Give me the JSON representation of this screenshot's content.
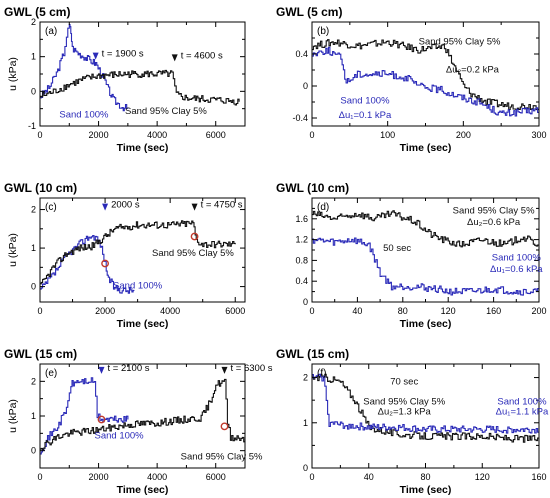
{
  "figure": {
    "colors": {
      "blue": "#2a2ab8",
      "black": "#111111",
      "marker": "#c0392b"
    }
  },
  "chart_data": [
    {
      "id": "a",
      "type": "line",
      "title": "GWL (5 cm)",
      "panel_label": "(a)",
      "xlabel": "Time (sec)",
      "ylabel": "u (kPa)",
      "xlim": [
        0,
        7000
      ],
      "ylim": [
        -1,
        2
      ],
      "xticks": [
        0,
        2000,
        4000,
        6000
      ],
      "yticks": [
        -1,
        0,
        1,
        2
      ],
      "xticks_unlabeled": [
        1000,
        3000,
        5000
      ],
      "yticks_unlabeled": [
        -0.5,
        0.5,
        1.5
      ],
      "series": [
        {
          "name": "Sand 100%",
          "color": "blue",
          "points": [
            [
              0,
              -0.15
            ],
            [
              300,
              0.1
            ],
            [
              600,
              0.6
            ],
            [
              800,
              1.1
            ],
            [
              900,
              1.6
            ],
            [
              1000,
              1.9
            ],
            [
              1050,
              1.7
            ],
            [
              1100,
              1.25
            ],
            [
              1300,
              1.1
            ],
            [
              1500,
              1.0
            ],
            [
              1700,
              0.9
            ],
            [
              1900,
              0.8
            ],
            [
              2100,
              0.5
            ],
            [
              2300,
              0.1
            ],
            [
              2500,
              -0.25
            ],
            [
              2800,
              -0.45
            ],
            [
              3000,
              -0.5
            ]
          ]
        },
        {
          "name": "Sand 95% Clay 5%",
          "color": "black",
          "points": [
            [
              0,
              -0.15
            ],
            [
              500,
              0.0
            ],
            [
              1000,
              0.2
            ],
            [
              1500,
              0.35
            ],
            [
              2000,
              0.45
            ],
            [
              3000,
              0.5
            ],
            [
              4000,
              0.5
            ],
            [
              4500,
              0.5
            ],
            [
              4650,
              -0.1
            ],
            [
              5000,
              -0.2
            ],
            [
              6000,
              -0.25
            ],
            [
              6800,
              -0.3
            ]
          ]
        }
      ],
      "annotations": [
        {
          "text": "t = 1900 s",
          "x": 1900,
          "y": 1.0,
          "arrow": true,
          "color": "blue"
        },
        {
          "text": "t = 4600 s",
          "x": 4600,
          "y": 0.95,
          "arrow": true,
          "color": "black"
        },
        {
          "text": "Sand 100%",
          "x": 1500,
          "y": -0.75,
          "color": "blue"
        },
        {
          "text": "Sand 95% Clay 5%",
          "x": 4300,
          "y": -0.65,
          "color": "black"
        }
      ]
    },
    {
      "id": "b",
      "type": "line",
      "title": "GWL (5 cm)",
      "panel_label": "(b)",
      "xlabel": "Time (sec)",
      "ylabel": "",
      "xlim": [
        0,
        300
      ],
      "ylim": [
        -0.5,
        0.8
      ],
      "xticks": [
        0,
        100,
        200,
        300
      ],
      "yticks": [
        -0.4,
        0,
        0.4
      ],
      "xticks_unlabeled": [
        50,
        150,
        250
      ],
      "yticks_unlabeled": [
        -0.2,
        0.2,
        0.6
      ],
      "series": [
        {
          "name": "Sand 95% Clay 5%",
          "color": "black",
          "points": [
            [
              0,
              0.5
            ],
            [
              30,
              0.55
            ],
            [
              60,
              0.5
            ],
            [
              100,
              0.55
            ],
            [
              140,
              0.45
            ],
            [
              175,
              0.5
            ],
            [
              190,
              0.2
            ],
            [
              200,
              0.0
            ],
            [
              210,
              -0.1
            ],
            [
              230,
              -0.2
            ],
            [
              260,
              -0.25
            ],
            [
              300,
              -0.25
            ]
          ]
        },
        {
          "name": "Sand 100%",
          "color": "blue",
          "points": [
            [
              0,
              0.4
            ],
            [
              20,
              0.45
            ],
            [
              38,
              0.35
            ],
            [
              45,
              0.05
            ],
            [
              60,
              0.15
            ],
            [
              80,
              0.15
            ],
            [
              100,
              0.15
            ],
            [
              125,
              0.1
            ],
            [
              140,
              0.0
            ],
            [
              170,
              -0.05
            ],
            [
              200,
              -0.15
            ],
            [
              220,
              -0.2
            ],
            [
              250,
              -0.35
            ],
            [
              300,
              -0.3
            ]
          ]
        }
      ],
      "annotations": [
        {
          "text": "Sand 95% Clay 5%",
          "x": 195,
          "y": 0.52,
          "color": "black"
        },
        {
          "text": "Δu₂=0.2 kPa",
          "x": 212,
          "y": 0.17,
          "color": "black"
        },
        {
          "text": "Sand 100%",
          "x": 70,
          "y": -0.22,
          "color": "blue"
        },
        {
          "text": "Δu₁=0.1 kPa",
          "x": 70,
          "y": -0.4,
          "color": "blue"
        }
      ]
    },
    {
      "id": "c",
      "type": "line",
      "title": "GWL (10 cm)",
      "panel_label": "(c)",
      "xlabel": "Time (sec)",
      "ylabel": "u (kPa)",
      "xlim": [
        0,
        6300
      ],
      "ylim": [
        -0.4,
        2.3
      ],
      "xticks": [
        0,
        2000,
        4000,
        6000
      ],
      "yticks": [
        0,
        1,
        2
      ],
      "xticks_unlabeled": [
        1000,
        3000,
        5000
      ],
      "yticks_unlabeled": [
        0.5,
        1.5
      ],
      "series": [
        {
          "name": "Sand 100%",
          "color": "blue",
          "points": [
            [
              0,
              -0.1
            ],
            [
              400,
              0.3
            ],
            [
              800,
              0.8
            ],
            [
              1200,
              1.1
            ],
            [
              1500,
              1.3
            ],
            [
              1700,
              1.3
            ],
            [
              1850,
              1.1
            ],
            [
              2000,
              0.6
            ],
            [
              2100,
              0.2
            ],
            [
              2300,
              -0.05
            ],
            [
              2600,
              -0.1
            ],
            [
              2900,
              -0.1
            ]
          ]
        },
        {
          "name": "Sand 95% Clay 5%",
          "color": "black",
          "points": [
            [
              0,
              0.0
            ],
            [
              400,
              0.5
            ],
            [
              800,
              0.85
            ],
            [
              1200,
              1.0
            ],
            [
              1600,
              1.05
            ],
            [
              2000,
              1.3
            ],
            [
              2300,
              1.5
            ],
            [
              3000,
              1.6
            ],
            [
              4000,
              1.6
            ],
            [
              4700,
              1.65
            ],
            [
              4800,
              1.2
            ],
            [
              5000,
              1.1
            ],
            [
              6000,
              1.1
            ]
          ]
        }
      ],
      "markers": [
        {
          "x": 2000,
          "y": 0.6
        },
        {
          "x": 4750,
          "y": 1.3
        }
      ],
      "annotations": [
        {
          "text": "2000 s",
          "x": 2000,
          "y": 2.05,
          "arrow": true,
          "color": "blue"
        },
        {
          "text": "t = 4750 s",
          "x": 4750,
          "y": 2.05,
          "arrow": true,
          "color": "black"
        },
        {
          "text": "Sand 95% Clay 5%",
          "x": 4700,
          "y": 0.8,
          "color": "black"
        },
        {
          "text": "Sand 100%",
          "x": 3000,
          "y": -0.05,
          "color": "blue"
        }
      ]
    },
    {
      "id": "d",
      "type": "line",
      "title": "GWL (10 cm)",
      "panel_label": "(d)",
      "xlabel": "Time (sec)",
      "ylabel": "",
      "xlim": [
        0,
        200
      ],
      "ylim": [
        0,
        2.0
      ],
      "xticks": [
        0,
        40,
        80,
        120,
        160,
        200
      ],
      "yticks": [
        0,
        0.4,
        0.8,
        1.2,
        1.6
      ],
      "xticks_unlabeled": [
        20,
        60,
        100,
        140,
        180
      ],
      "yticks_unlabeled": [
        0.2,
        0.6,
        1.0,
        1.4,
        1.8
      ],
      "series": [
        {
          "name": "Sand 95% Clay 5%",
          "color": "black",
          "points": [
            [
              0,
              1.7
            ],
            [
              20,
              1.6
            ],
            [
              40,
              1.7
            ],
            [
              55,
              1.6
            ],
            [
              70,
              1.7
            ],
            [
              90,
              1.55
            ],
            [
              105,
              1.3
            ],
            [
              115,
              1.2
            ],
            [
              130,
              1.1
            ],
            [
              150,
              1.2
            ],
            [
              170,
              1.1
            ],
            [
              185,
              1.25
            ],
            [
              200,
              1.1
            ]
          ]
        },
        {
          "name": "Sand 100%",
          "color": "blue",
          "points": [
            [
              0,
              1.2
            ],
            [
              20,
              1.15
            ],
            [
              35,
              1.2
            ],
            [
              50,
              1.1
            ],
            [
              60,
              0.55
            ],
            [
              70,
              0.3
            ],
            [
              90,
              0.3
            ],
            [
              110,
              0.25
            ],
            [
              120,
              0.2
            ],
            [
              140,
              0.2
            ],
            [
              160,
              0.25
            ],
            [
              180,
              0.2
            ],
            [
              200,
              0.2
            ]
          ]
        }
      ],
      "annotations": [
        {
          "text": "Sand 95% Clay 5%",
          "x": 160,
          "y": 1.7,
          "color": "black"
        },
        {
          "text": "Δu₂=0.6 kPa",
          "x": 160,
          "y": 1.48,
          "color": "black"
        },
        {
          "text": "50 sec",
          "x": 75,
          "y": 0.98,
          "color": "black"
        },
        {
          "text": "Sand 100%",
          "x": 180,
          "y": 0.8,
          "color": "blue"
        },
        {
          "text": "Δu₁=0.6 kPa",
          "x": 180,
          "y": 0.58,
          "color": "blue"
        }
      ]
    },
    {
      "id": "e",
      "type": "line",
      "title": "GWL (15 cm)",
      "panel_label": "(e)",
      "xlabel": "Time (sec)",
      "ylabel": "u (kPa)",
      "xlim": [
        0,
        7000
      ],
      "ylim": [
        -0.5,
        2.5
      ],
      "xticks": [
        0,
        2000,
        4000,
        6000
      ],
      "yticks": [
        0,
        1,
        2
      ],
      "xticks_unlabeled": [
        1000,
        3000,
        5000,
        7000
      ],
      "yticks_unlabeled": [
        0.5,
        1.5
      ],
      "series": [
        {
          "name": "Sand 100%",
          "color": "blue",
          "points": [
            [
              0,
              0.0
            ],
            [
              300,
              0.4
            ],
            [
              600,
              0.7
            ],
            [
              900,
              1.2
            ],
            [
              1050,
              1.9
            ],
            [
              1300,
              2.0
            ],
            [
              1700,
              2.0
            ],
            [
              1850,
              2.0
            ],
            [
              1950,
              1.0
            ],
            [
              2100,
              0.9
            ],
            [
              2500,
              0.9
            ],
            [
              3000,
              0.9
            ]
          ]
        },
        {
          "name": "Sand 95% Clay 5%",
          "color": "black",
          "points": [
            [
              0,
              0.1
            ],
            [
              600,
              0.4
            ],
            [
              1000,
              0.5
            ],
            [
              2000,
              0.6
            ],
            [
              3000,
              0.75
            ],
            [
              4000,
              0.8
            ],
            [
              5000,
              0.9
            ],
            [
              5500,
              0.95
            ],
            [
              5800,
              1.4
            ],
            [
              6000,
              1.9
            ],
            [
              6300,
              2.0
            ],
            [
              6400,
              0.8
            ],
            [
              6500,
              0.4
            ],
            [
              7000,
              0.35
            ]
          ]
        }
      ],
      "markers": [
        {
          "x": 2100,
          "y": 0.9
        },
        {
          "x": 6300,
          "y": 0.7
        }
      ],
      "annotations": [
        {
          "text": "t = 2100 s",
          "x": 2100,
          "y": 2.3,
          "arrow": true,
          "color": "blue"
        },
        {
          "text": "t = 6300 s",
          "x": 6300,
          "y": 2.3,
          "arrow": true,
          "color": "black"
        },
        {
          "text": "Sand 100%",
          "x": 2700,
          "y": 0.35,
          "color": "blue"
        },
        {
          "text": "Sand 95% Clay 5%",
          "x": 6200,
          "y": -0.25,
          "color": "black"
        }
      ]
    },
    {
      "id": "f",
      "type": "line",
      "title": "GWL (15 cm)",
      "panel_label": "(f)",
      "xlabel": "Time (sec)",
      "ylabel": "",
      "xlim": [
        0,
        160
      ],
      "ylim": [
        0,
        2.3
      ],
      "xticks": [
        0,
        40,
        80,
        120,
        160
      ],
      "yticks": [
        0,
        1,
        2
      ],
      "xticks_unlabeled": [
        20,
        60,
        100,
        140
      ],
      "yticks_unlabeled": [
        0.5,
        1.5
      ],
      "series": [
        {
          "name": "Sand 95% Clay 5%",
          "color": "black",
          "points": [
            [
              0,
              2.0
            ],
            [
              10,
              2.0
            ],
            [
              20,
              1.9
            ],
            [
              30,
              1.5
            ],
            [
              40,
              0.9
            ],
            [
              60,
              0.75
            ],
            [
              80,
              0.7
            ],
            [
              100,
              0.7
            ],
            [
              120,
              0.7
            ],
            [
              140,
              0.65
            ],
            [
              160,
              0.65
            ]
          ]
        },
        {
          "name": "Sand 100%",
          "color": "blue",
          "points": [
            [
              0,
              2.0
            ],
            [
              8,
              2.0
            ],
            [
              12,
              1.0
            ],
            [
              20,
              0.95
            ],
            [
              40,
              0.9
            ],
            [
              60,
              0.9
            ],
            [
              80,
              0.85
            ],
            [
              100,
              0.85
            ],
            [
              120,
              0.85
            ],
            [
              140,
              0.85
            ],
            [
              160,
              0.85
            ]
          ]
        }
      ],
      "annotations": [
        {
          "text": "70 sec",
          "x": 65,
          "y": 1.85,
          "color": "black"
        },
        {
          "text": "Sand 95% Clay 5%",
          "x": 65,
          "y": 1.4,
          "color": "black"
        },
        {
          "text": "Δu₂=1.3 kPa",
          "x": 65,
          "y": 1.18,
          "color": "black"
        },
        {
          "text": "Sand 100%",
          "x": 148,
          "y": 1.4,
          "color": "blue"
        },
        {
          "text": "Δu₁=1.1 kPa",
          "x": 148,
          "y": 1.18,
          "color": "blue"
        }
      ]
    }
  ]
}
